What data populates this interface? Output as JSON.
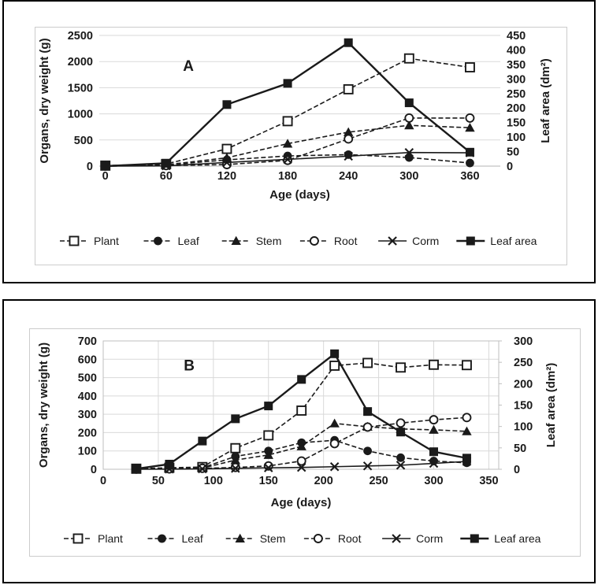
{
  "page": {
    "background": "#ffffff",
    "panel_border_color": "#000000",
    "figure_border_color": "#cccccc",
    "grid_color": "#d9d9d9",
    "axis_line_color": "#b3b3b3",
    "ink_color": "#1a1a1a"
  },
  "chart_data": [
    {
      "type": "line",
      "panel_label": "A",
      "xlabel": "Age (days)",
      "ylabel_left": "Organs, dry weight (g)",
      "ylabel_right": "Leaf area (dm²)",
      "x_ticks": [
        0,
        60,
        120,
        180,
        240,
        300,
        360
      ],
      "x": [
        0,
        60,
        120,
        180,
        240,
        300,
        360
      ],
      "ylim_left": [
        0,
        2500
      ],
      "ytick_step_left": 500,
      "ylim_right": [
        0,
        450
      ],
      "ytick_step_right": 50,
      "grid": {
        "horizontal": true,
        "vertical": false
      },
      "legend_position": "bottom",
      "series": [
        {
          "name": "Plant",
          "axis": "left",
          "marker": "open-square",
          "line": "dashed",
          "values": [
            10,
            40,
            330,
            860,
            1470,
            2060,
            1890
          ]
        },
        {
          "name": "Leaf",
          "axis": "left",
          "marker": "filled-circle",
          "line": "dashed",
          "values": [
            5,
            20,
            120,
            195,
            220,
            165,
            60
          ]
        },
        {
          "name": "Stem",
          "axis": "left",
          "marker": "filled-triangle",
          "line": "dashed",
          "values": [
            3,
            25,
            160,
            430,
            650,
            780,
            735
          ]
        },
        {
          "name": "Root",
          "axis": "left",
          "marker": "open-circle",
          "line": "dashed",
          "values": [
            2,
            10,
            30,
            110,
            520,
            920,
            920
          ]
        },
        {
          "name": "Corm",
          "axis": "left",
          "marker": "x",
          "line": "solid",
          "values": [
            0,
            5,
            70,
            130,
            190,
            260,
            255
          ]
        },
        {
          "name": "Leaf area",
          "axis": "right",
          "marker": "filled-square",
          "line": "solid-thick",
          "values": [
            0,
            10,
            212,
            285,
            425,
            218,
            48
          ]
        }
      ]
    },
    {
      "type": "line",
      "panel_label": "B",
      "xlabel": "Age (days)",
      "ylabel_left": "Organs, dry weight (g)",
      "ylabel_right": "Leaf area  (dm²)",
      "x_ticks": [
        0,
        50,
        100,
        150,
        200,
        250,
        300,
        350
      ],
      "x": [
        30,
        60,
        90,
        120,
        150,
        180,
        210,
        240,
        270,
        300,
        330
      ],
      "ylim_left": [
        0,
        700
      ],
      "ytick_step_left": 100,
      "ylim_right": [
        0,
        300
      ],
      "ytick_step_right": 50,
      "grid": {
        "horizontal": true,
        "vertical": true
      },
      "legend_position": "bottom",
      "series": [
        {
          "name": "Plant",
          "axis": "left",
          "marker": "open-square",
          "line": "dashed",
          "values": [
            3,
            8,
            12,
            115,
            185,
            320,
            565,
            580,
            555,
            570,
            568
          ]
        },
        {
          "name": "Leaf",
          "axis": "left",
          "marker": "filled-circle",
          "line": "dashed",
          "values": [
            2,
            5,
            8,
            70,
            100,
            145,
            158,
            100,
            63,
            45,
            35
          ]
        },
        {
          "name": "Stem",
          "axis": "left",
          "marker": "filled-triangle",
          "line": "dashed",
          "values": [
            1,
            3,
            6,
            50,
            78,
            125,
            250,
            232,
            220,
            215,
            207
          ]
        },
        {
          "name": "Root",
          "axis": "left",
          "marker": "open-circle",
          "line": "dashed",
          "values": [
            1,
            2,
            5,
            10,
            18,
            45,
            140,
            230,
            252,
            270,
            282
          ]
        },
        {
          "name": "Corm",
          "axis": "left",
          "marker": "x",
          "line": "solid",
          "values": [
            0,
            1,
            2,
            5,
            8,
            10,
            14,
            18,
            22,
            32,
            43
          ]
        },
        {
          "name": "Leaf area",
          "axis": "right",
          "marker": "filled-square",
          "line": "solid-thick",
          "values": [
            1,
            12,
            66,
            118,
            148,
            210,
            270,
            135,
            87,
            41,
            26
          ]
        }
      ]
    }
  ]
}
